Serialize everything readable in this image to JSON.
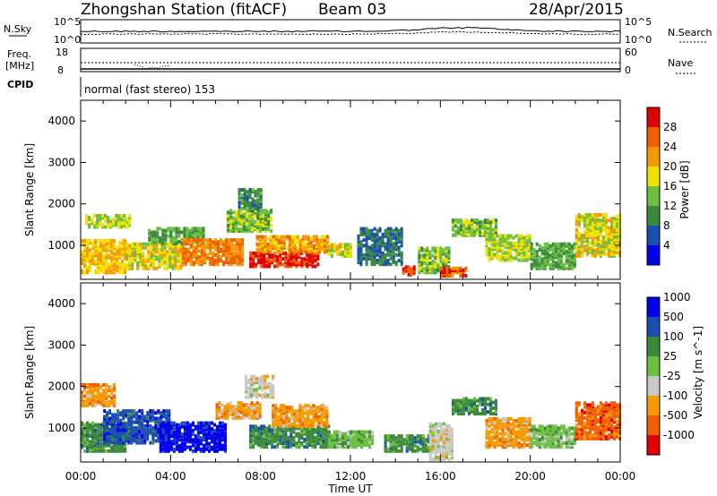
{
  "header": {
    "station": "Zhongshan Station (fitACF)",
    "beam": "Beam 03",
    "date": "28/Apr/2015"
  },
  "left_labels": {
    "nsky": "N.Sky",
    "nsky_top": "10^5",
    "nsky_bottom": "10^0",
    "freq": "Freq.",
    "freq_unit": "[MHz]",
    "freq_top": "18",
    "freq_bottom": "8",
    "cpid": "CPID"
  },
  "right_labels": {
    "nsearch": "N.Search",
    "nsearch_top": "10^5",
    "nsearch_bottom": "10^0",
    "nave": "Nave",
    "nave_top": "60",
    "nave_bottom": "0"
  },
  "cpid_text": "normal (fast stereo) 153",
  "x_axis": {
    "label": "Time UT",
    "ticks": [
      "00:00",
      "04:00",
      "08:00",
      "12:00",
      "16:00",
      "20:00",
      "00:00"
    ]
  },
  "colors": {
    "power": [
      "#0000ee",
      "#1a4fb0",
      "#3a8a3a",
      "#6cbf40",
      "#f2e000",
      "#f59a00",
      "#f06000",
      "#e00000"
    ],
    "velocity": [
      "#e00000",
      "#f06000",
      "#f59a00",
      "#c8c8c8",
      "#6cbf40",
      "#3a8a3a",
      "#1a4fb0",
      "#0000ee"
    ]
  },
  "chart_data": [
    {
      "type": "heatmap",
      "title": "Power",
      "ylabel": "Slant Range [km]",
      "xlabel": "",
      "y_ticks": [
        "1000",
        "2000",
        "3000",
        "4000"
      ],
      "x_range_hours": [
        0,
        24
      ],
      "y_range_km": [
        180,
        4500
      ],
      "colorbar": {
        "label": "Power [dB]",
        "ticks": [
          "4",
          "8",
          "12",
          "16",
          "20",
          "24",
          "28"
        ],
        "range": [
          0,
          32
        ]
      },
      "regions": [
        {
          "t0": 0.0,
          "t1": 2.0,
          "r0": 300,
          "r1": 1100,
          "v": 20
        },
        {
          "t0": 0.2,
          "t1": 2.2,
          "r0": 1400,
          "r1": 1700,
          "v": 16
        },
        {
          "t0": 2.0,
          "t1": 4.5,
          "r0": 400,
          "r1": 1000,
          "v": 18
        },
        {
          "t0": 3.0,
          "t1": 5.5,
          "r0": 1000,
          "r1": 1400,
          "v": 12
        },
        {
          "t0": 4.5,
          "t1": 7.2,
          "r0": 500,
          "r1": 1100,
          "v": 24
        },
        {
          "t0": 6.5,
          "t1": 8.5,
          "r0": 1300,
          "r1": 1800,
          "v": 14
        },
        {
          "t0": 7.0,
          "t1": 8.0,
          "r0": 1800,
          "r1": 2300,
          "v": 10
        },
        {
          "t0": 7.5,
          "t1": 10.5,
          "r0": 450,
          "r1": 800,
          "v": 30
        },
        {
          "t0": 7.8,
          "t1": 11.0,
          "r0": 800,
          "r1": 1200,
          "v": 22
        },
        {
          "t0": 11.0,
          "t1": 12.0,
          "r0": 700,
          "r1": 1000,
          "v": 18
        },
        {
          "t0": 12.3,
          "t1": 14.3,
          "r0": 500,
          "r1": 1400,
          "v": 8
        },
        {
          "t0": 14.3,
          "t1": 14.8,
          "r0": 250,
          "r1": 450,
          "v": 28
        },
        {
          "t0": 15.0,
          "t1": 16.4,
          "r0": 300,
          "r1": 900,
          "v": 14
        },
        {
          "t0": 16.0,
          "t1": 17.2,
          "r0": 220,
          "r1": 420,
          "v": 26
        },
        {
          "t0": 16.5,
          "t1": 18.5,
          "r0": 1200,
          "r1": 1600,
          "v": 14
        },
        {
          "t0": 18.0,
          "t1": 20.0,
          "r0": 600,
          "r1": 1200,
          "v": 16
        },
        {
          "t0": 20.0,
          "t1": 22.0,
          "r0": 400,
          "r1": 1000,
          "v": 12
        },
        {
          "t0": 22.0,
          "t1": 24.0,
          "r0": 700,
          "r1": 1700,
          "v": 18
        }
      ]
    },
    {
      "type": "heatmap",
      "title": "Velocity",
      "ylabel": "Slant Range [km]",
      "xlabel": "Time UT",
      "y_ticks": [
        "1000",
        "2000",
        "3000",
        "4000"
      ],
      "x_range_hours": [
        0,
        24
      ],
      "y_range_km": [
        180,
        4500
      ],
      "colorbar": {
        "label": "Velocity [m s^-1]",
        "ticks": [
          "-1000",
          "-500",
          "-100",
          "-25",
          "25",
          "100",
          "500",
          "1000"
        ]
      },
      "regions": [
        {
          "t0": 0.0,
          "t1": 1.5,
          "r0": 1500,
          "r1": 2000,
          "v": "-100"
        },
        {
          "t0": 0.0,
          "t1": 2.0,
          "r0": 400,
          "r1": 1100,
          "v": "100"
        },
        {
          "t0": 1.0,
          "t1": 4.0,
          "r0": 600,
          "r1": 1400,
          "v": "500"
        },
        {
          "t0": 3.5,
          "t1": 6.5,
          "r0": 400,
          "r1": 1100,
          "v": "1000"
        },
        {
          "t0": 6.0,
          "t1": 8.0,
          "r0": 1200,
          "r1": 1600,
          "v": "-100"
        },
        {
          "t0": 7.3,
          "t1": 8.5,
          "r0": 1700,
          "r1": 2200,
          "v": "0"
        },
        {
          "t0": 7.5,
          "t1": 11.0,
          "r0": 500,
          "r1": 1000,
          "v": "100"
        },
        {
          "t0": 8.5,
          "t1": 11.0,
          "r0": 1000,
          "r1": 1500,
          "v": "-100"
        },
        {
          "t0": 11.0,
          "t1": 13.0,
          "r0": 500,
          "r1": 900,
          "v": "25"
        },
        {
          "t0": 13.5,
          "t1": 15.5,
          "r0": 400,
          "r1": 800,
          "v": "100"
        },
        {
          "t0": 15.5,
          "t1": 16.5,
          "r0": 200,
          "r1": 1100,
          "v": "0"
        },
        {
          "t0": 16.5,
          "t1": 18.5,
          "r0": 1300,
          "r1": 1700,
          "v": "100"
        },
        {
          "t0": 18.0,
          "t1": 20.0,
          "r0": 500,
          "r1": 1200,
          "v": "-100"
        },
        {
          "t0": 20.0,
          "t1": 22.0,
          "r0": 500,
          "r1": 1000,
          "v": "25"
        },
        {
          "t0": 22.0,
          "t1": 24.0,
          "r0": 700,
          "r1": 1600,
          "v": "-500"
        }
      ]
    }
  ]
}
